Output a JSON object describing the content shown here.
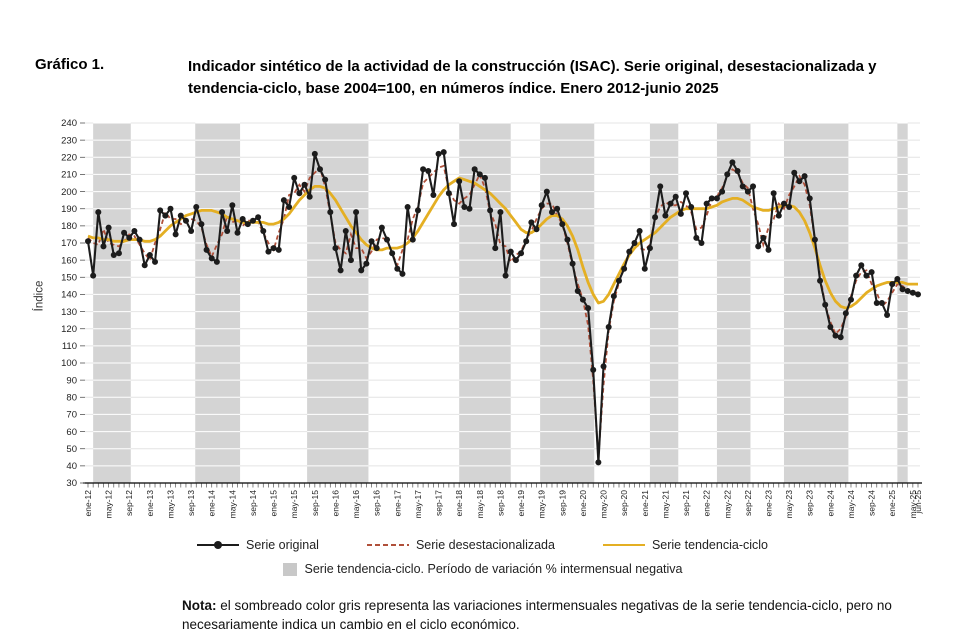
{
  "header": {
    "label": "Gráfico 1.",
    "title_line1": "Indicador sintético de la actividad de la construcción (ISAC). Serie original, desestacionalizada y",
    "title_line2": "tendencia-ciclo, base 2004=100, en números índice. Enero 2012-junio 2025"
  },
  "y_axis": {
    "title": "Índice"
  },
  "legend": {
    "original_label": "Serie original",
    "desest_label": "Serie desestacionalizada",
    "tendencia_label": "Serie tendencia-ciclo",
    "band_label": "Serie tendencia-ciclo. Período de variación % intermensual negativa"
  },
  "note": {
    "bold": "Nota:",
    "text": " el sombreado color gris representa las variaciones intermensuales negativas de la serie tendencia-ciclo, pero no necesariamente indica un cambio en el ciclo económico."
  },
  "chart_data": {
    "type": "line",
    "title": "Indicador sintético de la actividad de la construcción (ISAC). Serie original, desestacionalizada y tendencia-ciclo, base 2004=100, en números índice. Enero 2012-junio 2025",
    "ylabel": "Índice",
    "ylim": [
      30,
      240
    ],
    "ytick_step": 10,
    "x_start": "ene-12",
    "x_end": "jun-25",
    "months_total": 162,
    "grid": true,
    "colors": {
      "original": "#1c1c1c",
      "desestacionalizada": "#b0503a",
      "tendencia": "#e4af23",
      "band": "#d4d4d4",
      "gridline": "#e4e4e4",
      "axis": "#000000",
      "tick_text": "#222222"
    },
    "x_labels": [
      {
        "t": "ene-12",
        "m": 0
      },
      {
        "t": "may-12",
        "m": 4
      },
      {
        "t": "sep-12",
        "m": 8
      },
      {
        "t": "ene-13",
        "m": 12
      },
      {
        "t": "may-13",
        "m": 16
      },
      {
        "t": "sep-13",
        "m": 20
      },
      {
        "t": "ene-14",
        "m": 24
      },
      {
        "t": "may-14",
        "m": 28
      },
      {
        "t": "sep-14",
        "m": 32
      },
      {
        "t": "ene-15",
        "m": 36
      },
      {
        "t": "may-15",
        "m": 40
      },
      {
        "t": "sep-15",
        "m": 44
      },
      {
        "t": "ene-16",
        "m": 48
      },
      {
        "t": "may-16",
        "m": 52
      },
      {
        "t": "sep-16",
        "m": 56
      },
      {
        "t": "ene-17",
        "m": 60
      },
      {
        "t": "may-17",
        "m": 64
      },
      {
        "t": "sep-17",
        "m": 68
      },
      {
        "t": "ene-18",
        "m": 72
      },
      {
        "t": "may-18",
        "m": 76
      },
      {
        "t": "sep-18",
        "m": 80
      },
      {
        "t": "ene-19",
        "m": 84
      },
      {
        "t": "may-19",
        "m": 88
      },
      {
        "t": "sep-19",
        "m": 92
      },
      {
        "t": "ene-20",
        "m": 96
      },
      {
        "t": "may-20",
        "m": 100
      },
      {
        "t": "sep-20",
        "m": 104
      },
      {
        "t": "ene-21",
        "m": 108
      },
      {
        "t": "may-21",
        "m": 112
      },
      {
        "t": "sep-21",
        "m": 116
      },
      {
        "t": "ene-22",
        "m": 120
      },
      {
        "t": "may-22",
        "m": 124
      },
      {
        "t": "sep-22",
        "m": 128
      },
      {
        "t": "ene-23",
        "m": 132
      },
      {
        "t": "may-23",
        "m": 136
      },
      {
        "t": "sep-23",
        "m": 140
      },
      {
        "t": "ene-24",
        "m": 144
      },
      {
        "t": "may-24",
        "m": 148
      },
      {
        "t": "sep-24",
        "m": 152
      },
      {
        "t": "ene-25",
        "m": 156
      },
      {
        "t": "may-25",
        "m": 160
      },
      {
        "t": "jun-25",
        "m": 161
      }
    ],
    "shaded_bands_months": [
      [
        1,
        8.3
      ],
      [
        20.8,
        29.5
      ],
      [
        42.5,
        54.4
      ],
      [
        72,
        82
      ],
      [
        87.7,
        98.2
      ],
      [
        109,
        114.5
      ],
      [
        122,
        128.5
      ],
      [
        135,
        147.5
      ],
      [
        157,
        159
      ]
    ],
    "band_meaning": "Período de variación % intermensual negativa de la serie tendencia-ciclo",
    "series": [
      {
        "name": "Serie original",
        "style": "solid",
        "markers": true,
        "color": "#1c1c1c",
        "values": [
          171,
          151,
          188,
          168,
          179,
          163,
          164,
          176,
          173,
          177,
          172,
          157,
          163,
          159,
          189,
          186,
          190,
          175,
          186,
          183,
          177,
          191,
          181,
          166,
          161,
          159,
          188,
          177,
          192,
          176,
          184,
          181,
          183,
          185,
          177,
          165,
          167,
          166,
          195,
          191,
          208,
          199,
          204,
          197,
          222,
          213,
          207,
          188,
          167,
          154,
          177,
          160,
          188,
          154,
          158,
          171,
          167,
          179,
          172,
          164,
          155,
          152,
          191,
          172,
          189,
          213,
          212,
          198,
          222,
          223,
          199,
          181,
          206,
          191,
          190,
          213,
          210,
          208,
          189,
          167,
          188,
          151,
          165,
          160,
          164,
          171,
          182,
          178,
          192,
          200,
          188,
          190,
          181,
          172,
          158,
          142,
          137,
          132,
          96,
          42,
          98,
          121,
          139,
          148,
          155,
          165,
          170,
          177,
          155,
          167,
          185,
          203,
          186,
          193,
          197,
          187,
          199,
          191,
          173,
          170,
          193,
          196,
          196,
          200,
          210,
          217,
          212,
          203,
          200,
          203,
          168,
          173,
          166,
          199,
          186,
          193,
          191,
          211,
          206,
          209,
          196,
          172,
          148,
          134,
          121,
          116,
          115,
          129,
          137,
          151,
          157,
          151,
          153,
          135,
          135,
          128,
          146,
          149,
          143,
          142,
          141,
          140
        ]
      },
      {
        "name": "Serie desestacionalizada",
        "style": "dashed",
        "markers": false,
        "color": "#b0503a",
        "values": [
          173,
          170,
          169,
          178,
          170,
          169,
          168,
          171,
          175,
          174,
          169,
          164,
          160,
          170,
          178,
          188,
          184,
          184,
          181,
          182,
          184,
          183,
          179,
          169,
          162,
          169,
          175,
          186,
          182,
          184,
          180,
          183,
          183,
          182,
          176,
          170,
          166,
          176,
          184,
          198,
          199,
          204,
          200,
          208,
          211,
          214,
          203,
          187,
          170,
          166,
          164,
          175,
          167,
          167,
          161,
          165,
          172,
          173,
          172,
          164,
          157,
          166,
          172,
          184,
          191,
          205,
          208,
          211,
          214,
          215,
          201,
          195,
          193,
          196,
          198,
          204,
          210,
          202,
          188,
          181,
          169,
          168,
          159,
          163,
          165,
          172,
          177,
          184,
          190,
          193,
          193,
          186,
          181,
          170,
          157,
          146,
          137,
          122,
          90,
          45,
          87,
          119,
          136,
          147,
          156,
          163,
          171,
          167,
          166,
          169,
          185,
          191,
          194,
          192,
          192,
          194,
          192,
          188,
          178,
          179,
          186,
          195,
          197,
          202,
          209,
          213,
          211,
          205,
          202,
          190,
          181,
          169,
          179,
          184,
          193,
          190,
          198,
          203,
          209,
          204,
          192,
          172,
          151,
          134,
          124,
          117,
          120,
          127,
          139,
          148,
          153,
          154,
          146,
          141,
          133,
          136,
          141,
          146,
          145,
          142,
          141,
          141
        ]
      },
      {
        "name": "Serie tendencia-ciclo",
        "style": "solid",
        "markers": false,
        "color": "#e4af23",
        "values": [
          174,
          173,
          173,
          172,
          172,
          171,
          171,
          171,
          172,
          172,
          172,
          171,
          171,
          172,
          174,
          177,
          180,
          182,
          184,
          186,
          187,
          188,
          189,
          189,
          189,
          188,
          187,
          185,
          184,
          183,
          182,
          182,
          182,
          182,
          182,
          181,
          181,
          182,
          184,
          187,
          191,
          195,
          198,
          201,
          203,
          203,
          202,
          199,
          195,
          190,
          185,
          180,
          176,
          172,
          169,
          167,
          166,
          166,
          167,
          167,
          167,
          168,
          170,
          173,
          177,
          182,
          187,
          192,
          197,
          201,
          204,
          206,
          208,
          207,
          206,
          205,
          203,
          201,
          199,
          196,
          193,
          190,
          186,
          182,
          178,
          176,
          176,
          178,
          181,
          184,
          186,
          186,
          184,
          180,
          174,
          166,
          156,
          147,
          140,
          135,
          136,
          140,
          146,
          152,
          158,
          163,
          167,
          170,
          172,
          174,
          176,
          179,
          182,
          185,
          187,
          189,
          190,
          190,
          190,
          190,
          190,
          191,
          192,
          194,
          195,
          196,
          196,
          195,
          193,
          191,
          190,
          189,
          189,
          190,
          191,
          192,
          192,
          191,
          188,
          183,
          176,
          167,
          157,
          148,
          141,
          136,
          133,
          132,
          133,
          135,
          138,
          141,
          143,
          145,
          146,
          147,
          147,
          147,
          147,
          146,
          146,
          146
        ]
      }
    ]
  }
}
